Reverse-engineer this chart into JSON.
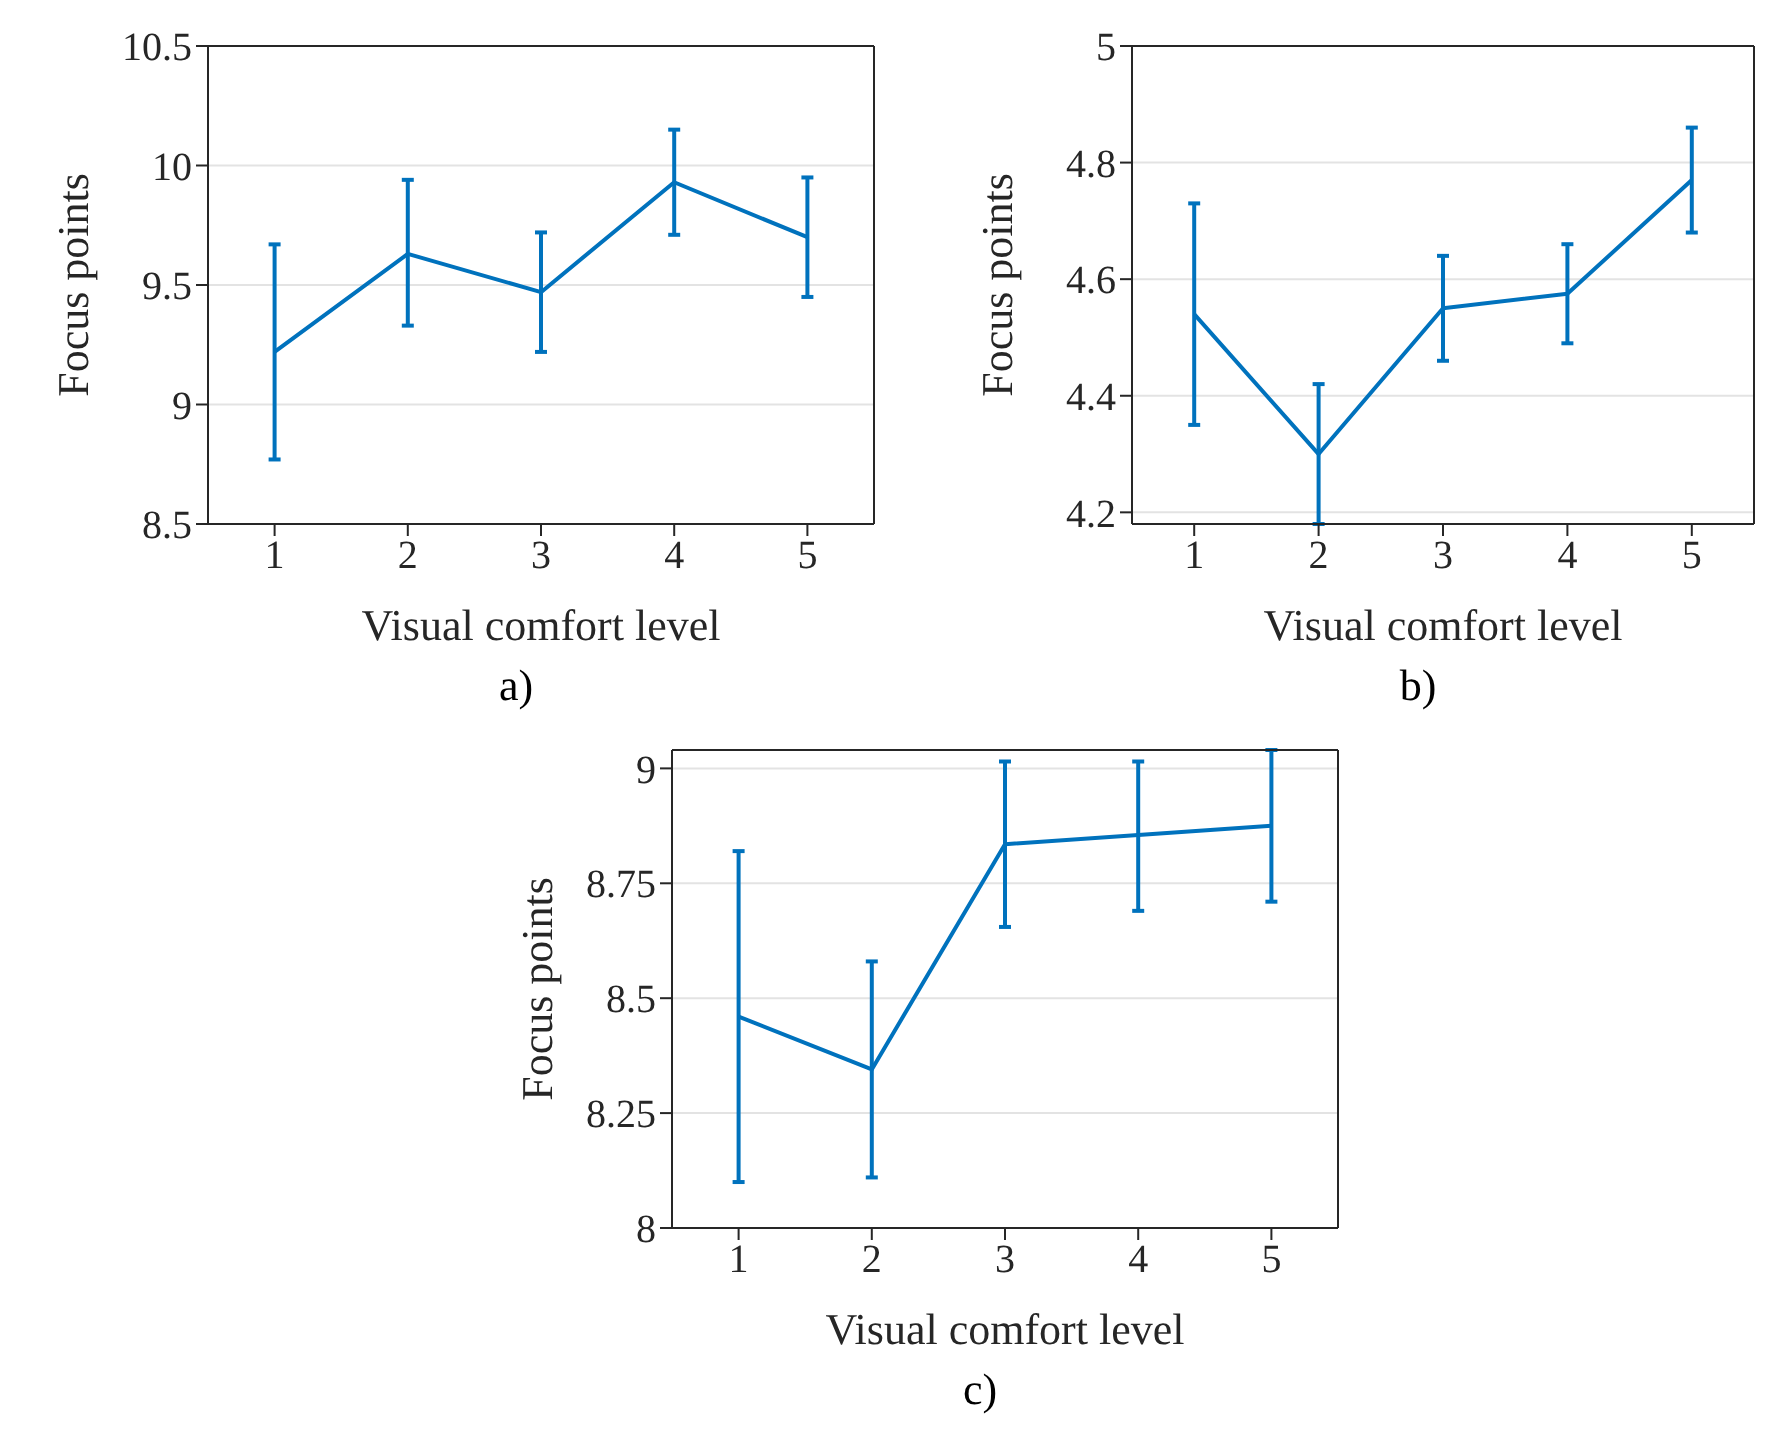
{
  "chart_data": [
    {
      "type": "line",
      "xlabel": "Visual comfort level",
      "ylabel": "Focus points",
      "color": "#0072bd",
      "marker": "none",
      "grid": "y",
      "x": [
        1,
        2,
        3,
        4,
        5
      ],
      "values": [
        9.22,
        9.63,
        9.47,
        9.93,
        9.7
      ],
      "errors": [
        [
          8.77,
          9.67
        ],
        [
          9.33,
          9.94
        ],
        [
          9.22,
          9.72
        ],
        [
          9.71,
          10.15
        ],
        [
          9.45,
          9.95
        ]
      ],
      "xlim": [
        0.5,
        5.5
      ],
      "xticks": [
        1,
        2,
        3,
        4,
        5
      ],
      "ylim": [
        8.5,
        10.5
      ],
      "yticks": [
        8.5,
        9,
        9.5,
        10,
        10.5
      ],
      "annotations": [
        "a)"
      ]
    },
    {
      "type": "line",
      "xlabel": "Visual comfort level",
      "ylabel": "Focus points",
      "color": "#0072bd",
      "marker": "none",
      "grid": "y",
      "x": [
        1,
        2,
        3,
        4,
        5
      ],
      "values": [
        4.54,
        4.3,
        4.55,
        4.575,
        4.77
      ],
      "errors": [
        [
          4.35,
          4.73
        ],
        [
          4.18,
          4.42
        ],
        [
          4.46,
          4.64
        ],
        [
          4.49,
          4.66
        ],
        [
          4.68,
          4.86
        ]
      ],
      "xlim": [
        0.5,
        5.5
      ],
      "xticks": [
        1,
        2,
        3,
        4,
        5
      ],
      "ylim": [
        4.18,
        5
      ],
      "yticks": [
        4.2,
        4.4,
        4.6,
        4.8,
        5
      ],
      "annotations": [
        "b)"
      ]
    },
    {
      "type": "line",
      "xlabel": "Visual comfort level",
      "ylabel": "Focus points",
      "color": "#0072bd",
      "marker": "none",
      "grid": "y",
      "x": [
        1,
        2,
        3,
        4,
        5
      ],
      "values": [
        8.46,
        8.345,
        8.835,
        8.855,
        8.875
      ],
      "errors": [
        [
          8.1,
          8.82
        ],
        [
          8.11,
          8.58
        ],
        [
          8.655,
          9.015
        ],
        [
          8.69,
          9.015
        ],
        [
          8.71,
          9.04
        ]
      ],
      "xlim": [
        0.5,
        5.5
      ],
      "xticks": [
        1,
        2,
        3,
        4,
        5
      ],
      "ylim": [
        8,
        9.04
      ],
      "yticks": [
        8,
        8.25,
        8.5,
        8.75,
        9
      ],
      "annotations": [
        "c)"
      ]
    }
  ]
}
